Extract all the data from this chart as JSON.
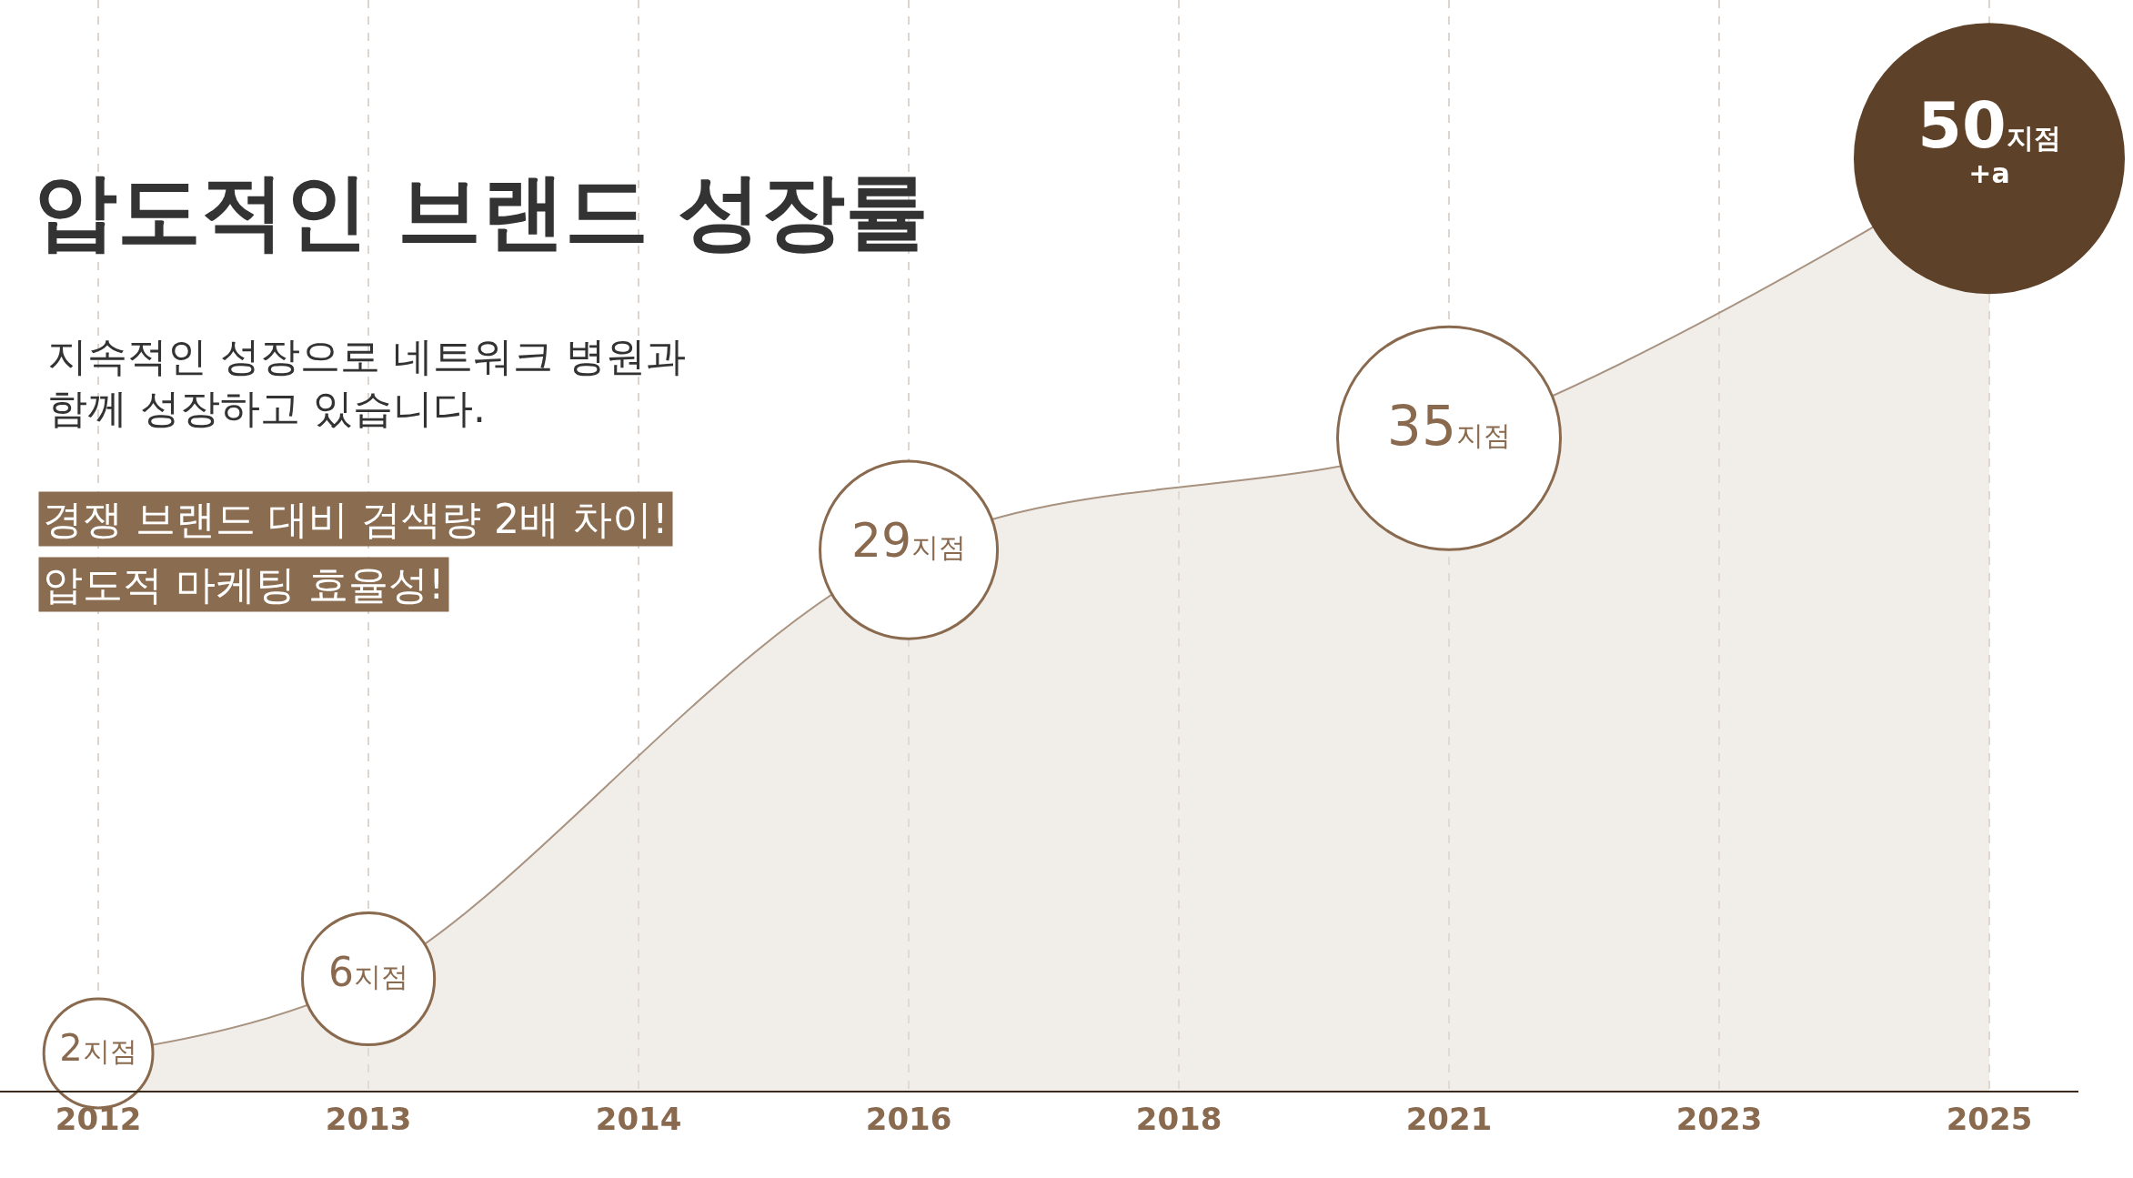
{
  "chart_data": {
    "type": "area",
    "title": "압도적인 브랜드 성장률",
    "subtitle": "지속적인 성장으로 네트워크 병원과\n함께 성장하고 있습니다.",
    "annotations": [
      "경쟁 브랜드 대비 검색량 2배 차이!",
      "압도적 마케팅 효율성!"
    ],
    "categories": [
      "2012",
      "2013",
      "2014",
      "2016",
      "2018",
      "2021",
      "2023",
      "2025"
    ],
    "series": [
      {
        "color": "#a89280",
        "values": [
          2,
          6,
          null,
          29,
          null,
          35,
          null,
          50
        ]
      },
      {
        "type": "bubble",
        "color": "#8a6a4f",
        "values": [
          2,
          6,
          null,
          29,
          null,
          35,
          null,
          50
        ],
        "sizes": [
          0.165,
          0.242,
          null,
          0.437,
          null,
          0.69,
          null,
          1
        ],
        "colors": [
          "#8a6a4f",
          "#8a6a4f",
          null,
          "#8a6a4f",
          null,
          "#8a6a4f",
          null,
          "#5e4129"
        ],
        "value_labels": [
          "2지점",
          "6지점",
          null,
          "29지점",
          null,
          "35지점",
          null,
          "50지점\n+a"
        ]
      }
    ],
    "legend": false,
    "grid": "x"
  }
}
